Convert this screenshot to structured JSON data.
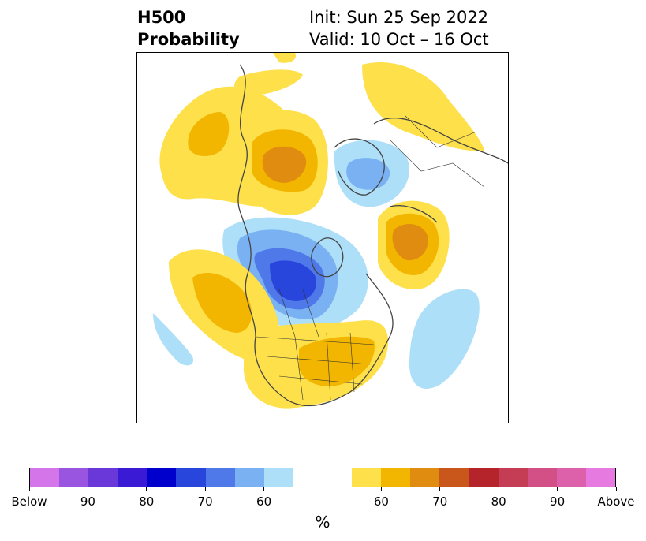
{
  "title": {
    "variable": "H500",
    "product": "Probability",
    "init": "Init: Sun 25 Sep 2022",
    "valid": "Valid: 10 Oct – 16 Oct"
  },
  "colorbar": {
    "unit": "%",
    "below_colors": [
      "#d475ea",
      "#9a55e0",
      "#6a38d8",
      "#3a1ad4",
      "#0000cc",
      "#2846dc",
      "#4f78e8",
      "#79b1f2",
      "#addff9"
    ],
    "neutral_color": "#ffffff",
    "above_colors": [
      "#fde04a",
      "#f3b600",
      "#e08c10",
      "#c9571c",
      "#b4242a",
      "#c53c55",
      "#d25086",
      "#dd60aa",
      "#e67ae0"
    ],
    "tick_labels": [
      "Below",
      "90",
      "80",
      "70",
      "60",
      "60",
      "70",
      "80",
      "90",
      "Above"
    ]
  },
  "map": {
    "projection": "polar stereographic (North America / Arctic)",
    "features": [
      "coastlines",
      "country borders",
      "US states",
      "Canadian provinces"
    ]
  }
}
